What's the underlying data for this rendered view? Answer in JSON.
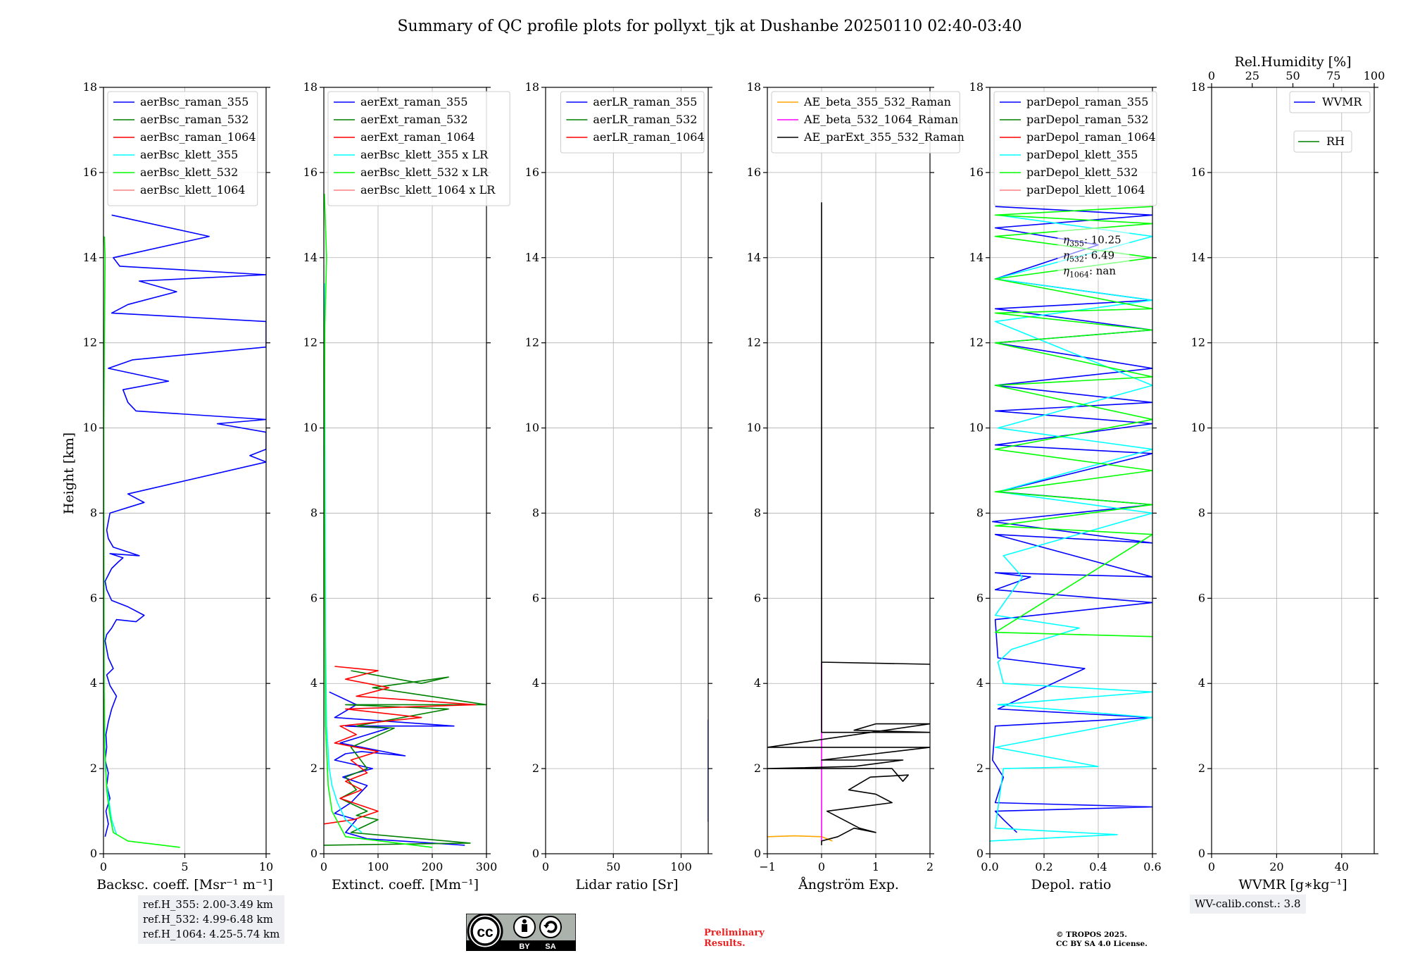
{
  "title": "Summary of QC profile plots for pollyxt_tjk at Dushanbe 20250110 02:40-03:40",
  "y_axis": {
    "label": "Height [km]",
    "ylim": [
      0,
      18
    ],
    "ticks": [
      0,
      2,
      4,
      6,
      8,
      10,
      12,
      14,
      16,
      18
    ]
  },
  "colors": {
    "blue": "#0000ff",
    "green": "#008000",
    "red": "#ff0000",
    "cyan": "#00ffff",
    "lime": "#00ff00",
    "salmon": "#ff8080",
    "orange": "#ffa500",
    "magenta": "#ff00ff",
    "black": "#000000"
  },
  "chart_data": [
    {
      "id": "bsc",
      "type": "line",
      "xlabel": "Backsc. coeff. [Msr⁻¹ m⁻¹]",
      "xlim": [
        0,
        10
      ],
      "xticks": [
        0,
        5,
        10
      ],
      "ylim": [
        0,
        18
      ],
      "legend": {
        "position": "upper-left",
        "entries": [
          "aerBsc_raman_355",
          "aerBsc_raman_532",
          "aerBsc_raman_1064",
          "aerBsc_klett_355",
          "aerBsc_klett_532",
          "aerBsc_klett_1064"
        ],
        "colors": [
          "blue",
          "green",
          "red",
          "cyan",
          "lime",
          "salmon"
        ]
      },
      "series": [
        {
          "name": "aerBsc_raman_355",
          "color": "blue",
          "x": [
            0.1,
            0.3,
            0.15,
            0.4,
            0.2,
            0.3,
            0.1,
            0.2,
            0.15,
            0.3,
            0.5,
            0.8,
            0.4,
            0.2,
            0.6,
            0.3,
            0.1,
            0.2,
            0.5,
            0.8,
            2.0,
            2.5,
            1.5,
            0.5,
            0.2,
            0.1,
            0.3,
            0.5,
            0.9,
            1.2,
            0.4,
            2.2,
            0.6,
            0.3,
            0.2,
            0.4,
            2.5,
            1.5,
            10,
            9,
            10,
            10,
            10,
            7,
            10,
            2.0,
            1.5,
            1.2,
            4.0,
            0.3,
            1.8,
            10,
            10,
            10,
            10,
            0.5,
            1.5,
            4.5,
            2.2,
            10,
            1.0,
            0.6,
            6.5,
            0.5
          ],
          "y": [
            0.4,
            0.7,
            1.0,
            1.3,
            1.6,
            1.9,
            2.2,
            2.5,
            2.8,
            3.1,
            3.4,
            3.7,
            3.95,
            4.2,
            4.35,
            4.6,
            5.0,
            5.15,
            5.3,
            5.5,
            5.45,
            5.6,
            5.8,
            5.95,
            6.2,
            6.4,
            6.55,
            6.7,
            6.85,
            6.95,
            7.05,
            7.0,
            7.2,
            7.4,
            7.6,
            8.0,
            8.25,
            8.45,
            9.2,
            9.35,
            9.5,
            9.7,
            9.9,
            10.1,
            10.2,
            10.4,
            10.6,
            10.9,
            11.1,
            11.4,
            11.6,
            11.9,
            12.05,
            12.25,
            12.5,
            12.7,
            12.9,
            13.2,
            13.45,
            13.6,
            13.8,
            14.0,
            14.5,
            15.0
          ]
        },
        {
          "name": "aerBsc_klett_355",
          "color": "cyan",
          "x": [
            0.8,
            0.5,
            0.35,
            0.2,
            0.12,
            0.08,
            0.05,
            0.03,
            0.02,
            0.02
          ],
          "y": [
            0.45,
            0.8,
            1.2,
            1.6,
            2.0,
            2.5,
            3.0,
            4.0,
            5.0,
            6.0
          ]
        },
        {
          "name": "aerBsc_klett_532",
          "color": "lime",
          "x": [
            4.7,
            1.5,
            0.6,
            0.4,
            0.2,
            0.08,
            0.04,
            0.03,
            0.02,
            0.02,
            0.05,
            0.1,
            0.05
          ],
          "y": [
            0.15,
            0.3,
            0.5,
            0.9,
            1.5,
            2.5,
            4.0,
            6.0,
            8.0,
            10.0,
            12.0,
            14.0,
            14.5
          ]
        }
      ]
    },
    {
      "id": "ext",
      "type": "line",
      "xlabel": "Extinct. coeff. [Mm⁻¹]",
      "xlim": [
        0,
        300
      ],
      "xticks": [
        0,
        100,
        200,
        300
      ],
      "ylim": [
        0,
        18
      ],
      "legend": {
        "position": "upper-left",
        "entries": [
          "aerExt_raman_355",
          "aerExt_raman_532",
          "aerExt_raman_1064",
          "aerBsc_klett_355 x LR",
          "aerBsc_klett_532 x LR",
          "aerBsc_klett_1064 x LR"
        ],
        "colors": [
          "blue",
          "green",
          "red",
          "cyan",
          "lime",
          "salmon"
        ]
      },
      "series": [
        {
          "name": "aerExt_raman_355",
          "color": "blue",
          "x": [
            260,
            80,
            40,
            60,
            20,
            50,
            80,
            35,
            60,
            90,
            20,
            40,
            70,
            150,
            30,
            120,
            40,
            240,
            20,
            60,
            10
          ],
          "y": [
            0.2,
            0.35,
            0.5,
            0.8,
            0.95,
            1.2,
            1.6,
            1.8,
            1.9,
            2.0,
            2.2,
            2.35,
            2.4,
            2.3,
            2.6,
            2.95,
            3.0,
            3.0,
            3.2,
            3.5,
            3.8
          ]
        },
        {
          "name": "aerExt_raman_532",
          "color": "green",
          "x": [
            0,
            270,
            50,
            100,
            60,
            80,
            30,
            60,
            40,
            80,
            50,
            130,
            60,
            230,
            40,
            300,
            90,
            230,
            180,
            50
          ],
          "y": [
            0.2,
            0.25,
            0.5,
            0.8,
            0.9,
            1.0,
            1.3,
            1.5,
            1.8,
            2.0,
            2.5,
            2.95,
            3.0,
            3.4,
            3.5,
            3.5,
            3.9,
            4.15,
            4.0,
            4.3
          ]
        },
        {
          "name": "aerExt_raman_1064",
          "color": "red",
          "x": [
            0,
            55,
            100,
            30,
            70,
            40,
            80,
            50,
            100,
            20,
            60,
            30,
            180,
            40,
            280,
            60,
            120,
            40,
            100,
            20
          ],
          "y": [
            0.7,
            0.8,
            1.0,
            1.3,
            1.5,
            1.7,
            1.9,
            2.2,
            2.4,
            2.6,
            2.8,
            3.0,
            3.2,
            3.4,
            3.5,
            3.7,
            3.9,
            4.1,
            4.3,
            4.4
          ]
        },
        {
          "name": "aerBsc_klett_355 x LR",
          "color": "cyan",
          "x": [
            70,
            40,
            25,
            15,
            10,
            5,
            3,
            2,
            1
          ],
          "y": [
            0.5,
            0.8,
            1.2,
            1.6,
            2.0,
            3.0,
            5.0,
            10,
            13.4
          ]
        },
        {
          "name": "aerBsc_klett_532 x LR",
          "color": "lime",
          "x": [
            200,
            40,
            15,
            8,
            3,
            2,
            1,
            2,
            5,
            1
          ],
          "y": [
            0.15,
            0.4,
            1.0,
            1.6,
            3.0,
            6.0,
            9.0,
            12.4,
            14.0,
            15.5
          ]
        }
      ]
    },
    {
      "id": "lr",
      "type": "line",
      "xlabel": "Lidar ratio [Sr]",
      "xlim": [
        0,
        120
      ],
      "xticks": [
        0,
        50,
        100
      ],
      "ylim": [
        0,
        18
      ],
      "legend": {
        "position": "upper-right",
        "entries": [
          "aerLR_raman_355",
          "aerLR_raman_532",
          "aerLR_raman_1064"
        ],
        "colors": [
          "blue",
          "green",
          "red"
        ]
      },
      "series": [
        {
          "name": "aerLR_raman_355",
          "color": "blue",
          "x": [
            120,
            120,
            120,
            120,
            120,
            120,
            120,
            120,
            120,
            120,
            120,
            120,
            120,
            120,
            120
          ],
          "y": [
            0.75,
            1.05,
            1.5,
            1.75,
            2.05,
            2.1,
            2.2,
            2.25,
            2.5,
            2.75,
            2.8,
            2.9,
            3.05,
            3.1,
            3.15
          ]
        }
      ]
    },
    {
      "id": "ae",
      "type": "line",
      "xlabel": "Ångström Exp.",
      "xlim": [
        -1,
        2
      ],
      "xticks": [
        -1,
        0,
        1,
        2
      ],
      "ylim": [
        0,
        18
      ],
      "legend": {
        "position": "upper-left",
        "entries": [
          "AE_beta_355_532_Raman",
          "AE_beta_532_1064_Raman",
          "AE_parExt_355_532_Raman"
        ],
        "colors": [
          "orange",
          "magenta",
          "black"
        ]
      },
      "series": [
        {
          "name": "AE_beta_355_532_Raman",
          "color": "orange",
          "x": [
            -1,
            -0.5,
            0.0,
            0.2
          ],
          "y": [
            0.4,
            0.42,
            0.4,
            0.3
          ]
        },
        {
          "name": "AE_beta_532_1064_Raman",
          "color": "magenta",
          "x": [
            0,
            0,
            0
          ],
          "y": [
            0.3,
            2.0,
            4.5
          ]
        },
        {
          "name": "AE_parExt_355_532_Raman",
          "color": "black",
          "x": [
            0,
            0,
            0.3,
            0.6,
            1.0,
            0.7,
            0.1,
            1.3,
            1.0,
            0.5,
            0.9,
            1.6,
            1.5,
            1.3,
            -1,
            0.6,
            1.5,
            0.0,
            2.0,
            -1,
            2.0,
            1.0,
            0.6,
            2.0,
            0.0,
            0.0,
            2.0,
            0.0,
            0.0
          ],
          "y": [
            0.2,
            0.3,
            0.4,
            0.6,
            0.5,
            0.6,
            1.0,
            1.2,
            1.4,
            1.5,
            1.8,
            1.85,
            1.7,
            2.0,
            2.0,
            2.05,
            2.2,
            2.2,
            2.5,
            2.5,
            3.05,
            3.05,
            2.9,
            2.85,
            2.85,
            4.5,
            4.45,
            4.5,
            15.3
          ]
        }
      ]
    },
    {
      "id": "depol",
      "type": "line",
      "xlabel": "Depol. ratio",
      "xlim": [
        0,
        0.6
      ],
      "xticks": [
        0.0,
        0.2,
        0.4,
        0.6
      ],
      "ylim": [
        0,
        18
      ],
      "legend": {
        "position": "upper-left",
        "entries": [
          "parDepol_raman_355",
          "parDepol_raman_532",
          "parDepol_raman_1064",
          "parDepol_klett_355",
          "parDepol_klett_532",
          "parDepol_klett_1064"
        ],
        "colors": [
          "blue",
          "green",
          "red",
          "cyan",
          "lime",
          "salmon"
        ]
      },
      "annotation": [
        "η355: 10.25",
        "η532: 6.49",
        "η1064: nan"
      ],
      "series": [
        {
          "name": "parDepol_raman_355",
          "color": "blue",
          "x": [
            0.1,
            0.05,
            0.02,
            0.6,
            0.02,
            0.05,
            0.01,
            0.02,
            0.6,
            0.03,
            0.35,
            0.03,
            0.02,
            0.6,
            0.02,
            0.15,
            0.02,
            0.6,
            0.02,
            0.6,
            0.01,
            0.6,
            0.03,
            0.6,
            0.02,
            0.6,
            0.02,
            0.6,
            0.02,
            0.6,
            0.02,
            0.6,
            0.02,
            0.6,
            0.02,
            0.4,
            0.02,
            0.6,
            0.02
          ],
          "y": [
            0.5,
            0.8,
            1.0,
            1.1,
            1.2,
            1.8,
            2.2,
            3.0,
            3.2,
            3.4,
            4.35,
            4.6,
            5.5,
            5.9,
            6.2,
            6.5,
            6.6,
            6.5,
            7.5,
            7.3,
            7.8,
            8.2,
            8.5,
            9.4,
            9.6,
            10.1,
            10.4,
            10.6,
            11.0,
            11.4,
            12.0,
            12.3,
            12.8,
            13.0,
            13.5,
            14.3,
            14.7,
            15.0,
            15.2
          ]
        },
        {
          "name": "parDepol_klett_355",
          "color": "cyan",
          "x": [
            0.0,
            0.47,
            0.02,
            0.05,
            0.4,
            0.02,
            0.6,
            0.03,
            0.6,
            0.05,
            0.03,
            0.08,
            0.33,
            0.02,
            0.12,
            0.05,
            0.6,
            0.03,
            0.6,
            0.03,
            0.6,
            0.02,
            0.6,
            0.02,
            0.6,
            0.03
          ],
          "y": [
            0.3,
            0.45,
            0.6,
            2.0,
            2.05,
            2.5,
            3.2,
            3.5,
            3.8,
            4.0,
            4.5,
            4.8,
            5.3,
            5.6,
            6.5,
            7.0,
            8.0,
            8.5,
            9.5,
            10.0,
            11.0,
            12.5,
            13.0,
            13.5,
            14.5,
            15.0
          ]
        },
        {
          "name": "parDepol_klett_532",
          "color": "lime",
          "x": [
            0.6,
            0.02,
            0.6,
            0.02,
            0.6,
            0.02,
            0.6,
            0.02,
            0.6,
            0.02,
            0.6,
            0.02,
            0.6,
            0.02,
            0.6,
            0.02,
            0.6,
            0.02,
            0.6,
            0.02,
            0.6
          ],
          "y": [
            5.1,
            5.2,
            7.5,
            7.7,
            8.2,
            8.5,
            9.0,
            9.5,
            10.2,
            11.0,
            11.2,
            12.0,
            12.3,
            12.7,
            12.8,
            13.5,
            14.0,
            14.5,
            14.8,
            15.0,
            15.2
          ]
        }
      ]
    },
    {
      "id": "wv",
      "type": "line",
      "xlabel": "WVMR [g∗kg⁻¹]",
      "xlim": [
        0,
        50
      ],
      "xticks": [
        0,
        20,
        40
      ],
      "ylim": [
        0,
        18
      ],
      "top_axis": {
        "label": "Rel.Humidity [%]",
        "xlim": [
          0,
          100
        ],
        "ticks": [
          0,
          25,
          50,
          75,
          100
        ]
      },
      "legend": {
        "position": "upper-right",
        "entries": [
          "WVMR",
          "RH"
        ],
        "colors": [
          "blue",
          "green"
        ]
      },
      "series": []
    }
  ],
  "ref_heights": [
    "ref.H_355: 2.00-3.49 km",
    "ref.H_532: 4.99-6.48 km",
    "ref.H_1064: 4.25-5.74 km"
  ],
  "wv_calib": "WV-calib.const.: 3.8",
  "preliminary": [
    "Preliminary",
    "Results."
  ],
  "copyright": [
    "© TROPOS 2025.",
    "CC BY SA 4.0 License."
  ],
  "cc_logo": {
    "by": "BY",
    "sa": "SA"
  }
}
